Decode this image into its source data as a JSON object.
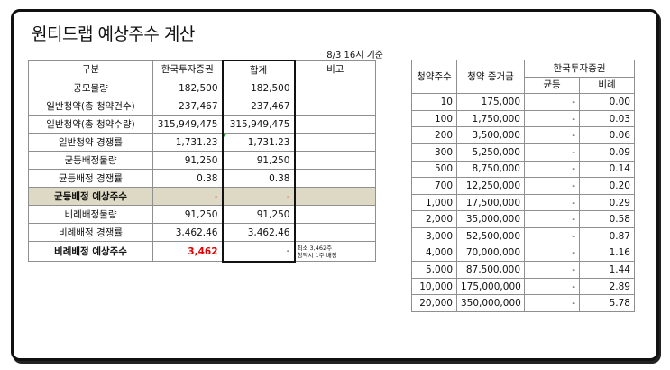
{
  "title": "원티드랩 예상주수 계산",
  "as_of": "8/3 16시 기준",
  "main_table": {
    "headers": [
      "구분",
      "한국투자증권",
      "합계",
      "비고"
    ],
    "rows": [
      {
        "label": "공모물량",
        "broker": "182,500",
        "total": "182,500",
        "note": ""
      },
      {
        "label": "일반청약(총 청약건수)",
        "broker": "237,467",
        "total": "237,467",
        "note": ""
      },
      {
        "label": "일반청약(총 청약수량)",
        "broker": "315,949,475",
        "total": "315,949,475",
        "note": ""
      },
      {
        "label": "일반청약 경쟁률",
        "broker": "1,731.23",
        "total": "1,731.23",
        "note": ""
      },
      {
        "label": "균등배정물량",
        "broker": "91,250",
        "total": "91,250",
        "note": ""
      },
      {
        "label": "균등배정 경쟁률",
        "broker": "0.38",
        "total": "0.38",
        "note": ""
      },
      {
        "label": "균등배정 예상주수",
        "broker": "-",
        "total": "-",
        "note": ""
      },
      {
        "label": "비례배정물량",
        "broker": "91,250",
        "total": "91,250",
        "note": ""
      },
      {
        "label": "비례배정 경쟁률",
        "broker": "3,462.46",
        "total": "3,462.46",
        "note": ""
      },
      {
        "label": "비례배정 예상주수",
        "broker": "3,462",
        "total": "-",
        "note_line1": "최소 3,462주",
        "note_line2": "청약시 1주 배정"
      }
    ]
  },
  "alloc_table": {
    "headers": {
      "shares": "청약주수",
      "deposit": "청약 증거금",
      "broker": "한국투자증권",
      "equal": "균등",
      "prop": "비례"
    },
    "rows": [
      {
        "shares": "10",
        "deposit": "175,000",
        "equal": "-",
        "prop": "0.00"
      },
      {
        "shares": "100",
        "deposit": "1,750,000",
        "equal": "-",
        "prop": "0.03"
      },
      {
        "shares": "200",
        "deposit": "3,500,000",
        "equal": "-",
        "prop": "0.06"
      },
      {
        "shares": "300",
        "deposit": "5,250,000",
        "equal": "-",
        "prop": "0.09"
      },
      {
        "shares": "500",
        "deposit": "8,750,000",
        "equal": "-",
        "prop": "0.14"
      },
      {
        "shares": "700",
        "deposit": "12,250,000",
        "equal": "-",
        "prop": "0.20"
      },
      {
        "shares": "1,000",
        "deposit": "17,500,000",
        "equal": "-",
        "prop": "0.29"
      },
      {
        "shares": "2,000",
        "deposit": "35,000,000",
        "equal": "-",
        "prop": "0.58"
      },
      {
        "shares": "3,000",
        "deposit": "52,500,000",
        "equal": "-",
        "prop": "0.87"
      },
      {
        "shares": "4,000",
        "deposit": "70,000,000",
        "equal": "-",
        "prop": "1.16"
      },
      {
        "shares": "5,000",
        "deposit": "87,500,000",
        "equal": "-",
        "prop": "1.44"
      },
      {
        "shares": "10,000",
        "deposit": "175,000,000",
        "equal": "-",
        "prop": "2.89"
      },
      {
        "shares": "20,000",
        "deposit": "350,000,000",
        "equal": "-",
        "prop": "5.78"
      }
    ]
  },
  "colors": {
    "highlight_row": "#ddd9c4",
    "accent_red": "#e20000",
    "mark_green": "#2e8b2e"
  }
}
